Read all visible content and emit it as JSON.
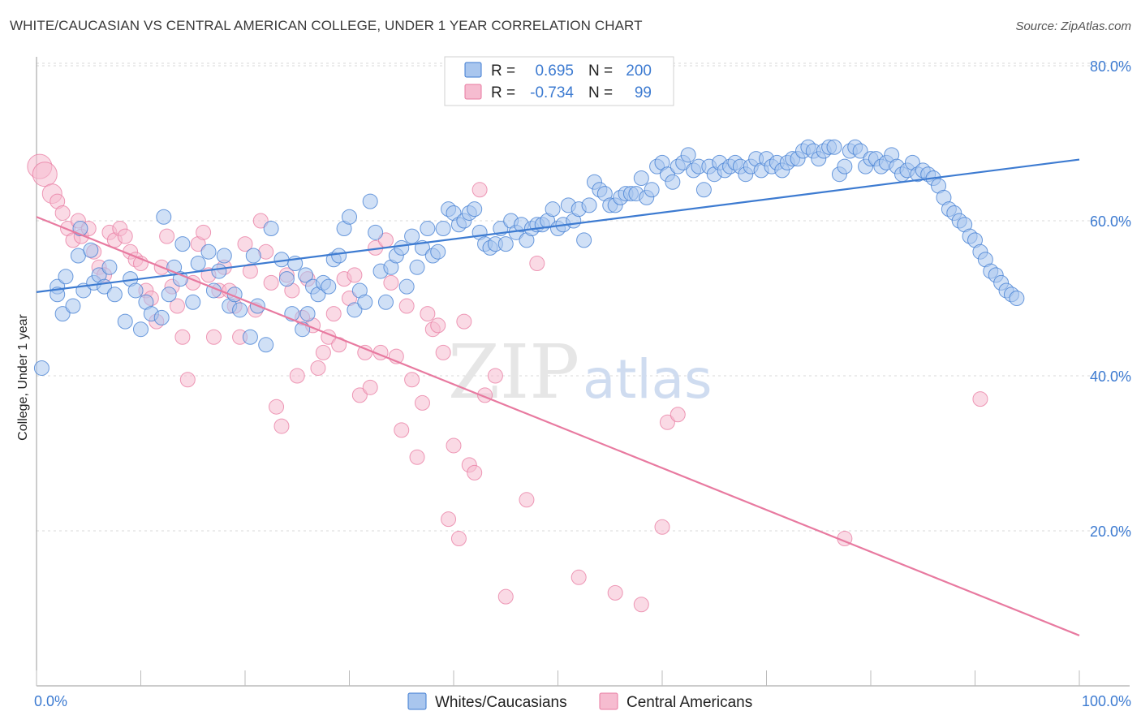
{
  "title": "WHITE/CAUCASIAN VS CENTRAL AMERICAN COLLEGE, UNDER 1 YEAR CORRELATION CHART",
  "source": "Source: ZipAtlas.com",
  "watermark": {
    "zip": "ZIP",
    "atlas": "atlas"
  },
  "colors": {
    "blue": "#3d7bd1",
    "blue_fill": "#a9c6ee",
    "pink": "#e87aa0",
    "pink_fill": "#f6bcd0",
    "grid": "#d8d8d8"
  },
  "legend": {
    "r_label": "R =",
    "n_label": "N =",
    "rows": [
      {
        "r": "0.695",
        "n": "200"
      },
      {
        "r": "-0.734",
        "n": "99"
      }
    ]
  },
  "bottom_legend": [
    "Whites/Caucasians",
    "Central Americans"
  ],
  "chart_data": {
    "type": "scatter",
    "title": "WHITE/CAUCASIAN VS CENTRAL AMERICAN COLLEGE, UNDER 1 YEAR CORRELATION CHART",
    "xlabel": "",
    "ylabel": "College, Under 1 year",
    "xlim": [
      0,
      100
    ],
    "ylim": [
      0,
      85
    ],
    "x_tick_labels": [
      "0.0%",
      "100.0%"
    ],
    "y_ticks": [
      20,
      40,
      60,
      80
    ],
    "y_tick_labels": [
      "20.0%",
      "40.0%",
      "60.0%",
      "80.0%"
    ],
    "grid": true,
    "legend_position": "top-center",
    "series": [
      {
        "name": "Whites/Caucasians",
        "color": "#3d7bd1",
        "trend": {
          "x": [
            0,
            100
          ],
          "y": [
            50.8,
            67.9
          ]
        },
        "points": [
          [
            0.5,
            41
          ],
          [
            2,
            51.5
          ],
          [
            2,
            50.5
          ],
          [
            2.5,
            48
          ],
          [
            2.8,
            52.8
          ],
          [
            3.5,
            49
          ],
          [
            4,
            55.5
          ],
          [
            4.2,
            59
          ],
          [
            4.5,
            51
          ],
          [
            5.2,
            56.2
          ],
          [
            5.5,
            52
          ],
          [
            6,
            53
          ],
          [
            6.5,
            51.5
          ],
          [
            7,
            54
          ],
          [
            7.5,
            50.5
          ],
          [
            8.5,
            47
          ],
          [
            9,
            52.5
          ],
          [
            9.5,
            51
          ],
          [
            10,
            46
          ],
          [
            10.5,
            49.5
          ],
          [
            11,
            48
          ],
          [
            12,
            47.5
          ],
          [
            12.2,
            60.5
          ],
          [
            12.7,
            50.5
          ],
          [
            13.2,
            54
          ],
          [
            13.8,
            52.5
          ],
          [
            14,
            57
          ],
          [
            15,
            49.5
          ],
          [
            15.5,
            54.5
          ],
          [
            16.5,
            56
          ],
          [
            17,
            51
          ],
          [
            17.5,
            53.5
          ],
          [
            18,
            55.5
          ],
          [
            18.5,
            49
          ],
          [
            19,
            50.5
          ],
          [
            19.5,
            48.5
          ],
          [
            20.5,
            45
          ],
          [
            20.8,
            55.5
          ],
          [
            21.2,
            49
          ],
          [
            22,
            44
          ],
          [
            22.5,
            59
          ],
          [
            23.5,
            55
          ],
          [
            24,
            52.5
          ],
          [
            24.5,
            48
          ],
          [
            24.8,
            54.5
          ],
          [
            25.5,
            46
          ],
          [
            25.8,
            53
          ],
          [
            26,
            48
          ],
          [
            26.5,
            51.5
          ],
          [
            27,
            50.5
          ],
          [
            27.5,
            52
          ],
          [
            28,
            51.5
          ],
          [
            28.5,
            55
          ],
          [
            29,
            55.5
          ],
          [
            29.5,
            59
          ],
          [
            30,
            60.5
          ],
          [
            30.5,
            48.5
          ],
          [
            31,
            51
          ],
          [
            31.5,
            49.5
          ],
          [
            32,
            62.5
          ],
          [
            32.5,
            58.5
          ],
          [
            33,
            53.5
          ],
          [
            33.5,
            49.5
          ],
          [
            34,
            54
          ],
          [
            34.5,
            55.5
          ],
          [
            35,
            56.5
          ],
          [
            35.5,
            51.5
          ],
          [
            36,
            58
          ],
          [
            36.5,
            54
          ],
          [
            37,
            56.5
          ],
          [
            37.5,
            59
          ],
          [
            38,
            55.5
          ],
          [
            38.5,
            56
          ],
          [
            39,
            59
          ],
          [
            39.5,
            61.5
          ],
          [
            40,
            61
          ],
          [
            40.5,
            59.5
          ],
          [
            41,
            60
          ],
          [
            41.5,
            61
          ],
          [
            42,
            61.5
          ],
          [
            42.5,
            58.5
          ],
          [
            43,
            57
          ],
          [
            43.5,
            56.5
          ],
          [
            44,
            57
          ],
          [
            44.5,
            59
          ],
          [
            45,
            57
          ],
          [
            45.5,
            60
          ],
          [
            46,
            58.5
          ],
          [
            46.5,
            59.5
          ],
          [
            47,
            57.5
          ],
          [
            47.5,
            59
          ],
          [
            48,
            59.5
          ],
          [
            48.5,
            59.5
          ],
          [
            49,
            60
          ],
          [
            49.5,
            61.5
          ],
          [
            50,
            59
          ],
          [
            50.5,
            59.5
          ],
          [
            51,
            62
          ],
          [
            51.5,
            60
          ],
          [
            52,
            61.5
          ],
          [
            52.5,
            57.5
          ],
          [
            53,
            62
          ],
          [
            53.5,
            65
          ],
          [
            54,
            64
          ],
          [
            54.5,
            63.5
          ],
          [
            55,
            62
          ],
          [
            55.5,
            62
          ],
          [
            56,
            63
          ],
          [
            56.5,
            63.5
          ],
          [
            57,
            63.5
          ],
          [
            57.5,
            63.5
          ],
          [
            58,
            65.5
          ],
          [
            58.5,
            63
          ],
          [
            59,
            64
          ],
          [
            59.5,
            67
          ],
          [
            60,
            67.5
          ],
          [
            60.5,
            66
          ],
          [
            61,
            65
          ],
          [
            61.5,
            67
          ],
          [
            62,
            67.5
          ],
          [
            62.5,
            68.5
          ],
          [
            63,
            66.5
          ],
          [
            63.5,
            67
          ],
          [
            64,
            64
          ],
          [
            64.5,
            67
          ],
          [
            65,
            66
          ],
          [
            65.5,
            67.5
          ],
          [
            66,
            66.5
          ],
          [
            66.5,
            67
          ],
          [
            67,
            67.5
          ],
          [
            67.5,
            67
          ],
          [
            68,
            66
          ],
          [
            68.5,
            67
          ],
          [
            69,
            68
          ],
          [
            69.5,
            66.5
          ],
          [
            70,
            68
          ],
          [
            70.5,
            67
          ],
          [
            71,
            67.5
          ],
          [
            71.5,
            66.5
          ],
          [
            72,
            67.5
          ],
          [
            72.5,
            68
          ],
          [
            73,
            68
          ],
          [
            73.5,
            69
          ],
          [
            74,
            69.5
          ],
          [
            74.5,
            69
          ],
          [
            75,
            68
          ],
          [
            75.5,
            69
          ],
          [
            76,
            69.5
          ],
          [
            76.5,
            69.5
          ],
          [
            77,
            66
          ],
          [
            77.5,
            67
          ],
          [
            78,
            69
          ],
          [
            78.5,
            69.5
          ],
          [
            79,
            69
          ],
          [
            79.5,
            67
          ],
          [
            80,
            68
          ],
          [
            80.5,
            68
          ],
          [
            81,
            67
          ],
          [
            81.5,
            67.5
          ],
          [
            82,
            68.5
          ],
          [
            82.5,
            67
          ],
          [
            83,
            66
          ],
          [
            83.5,
            66.5
          ],
          [
            84,
            67.5
          ],
          [
            84.5,
            66
          ],
          [
            85,
            66.5
          ],
          [
            85.5,
            66
          ],
          [
            86,
            65.5
          ],
          [
            86.5,
            64.5
          ],
          [
            87,
            63
          ],
          [
            87.5,
            61.5
          ],
          [
            88,
            61
          ],
          [
            88.5,
            60
          ],
          [
            89,
            59.5
          ],
          [
            89.5,
            58
          ],
          [
            90,
            57.5
          ],
          [
            90.5,
            56
          ],
          [
            91,
            55
          ],
          [
            91.5,
            53.5
          ],
          [
            92,
            53
          ],
          [
            92.5,
            52
          ],
          [
            93,
            51
          ],
          [
            93.5,
            50.5
          ],
          [
            94,
            50
          ]
        ]
      },
      {
        "name": "Central Americans",
        "color": "#e87aa0",
        "trend": {
          "x": [
            0,
            100
          ],
          "y": [
            60.5,
            6.5
          ]
        },
        "points": [
          [
            0.3,
            67
          ],
          [
            0.8,
            66
          ],
          [
            1.5,
            63.5
          ],
          [
            2,
            62.5
          ],
          [
            2.5,
            61
          ],
          [
            3,
            59
          ],
          [
            3.5,
            57.5
          ],
          [
            4,
            60
          ],
          [
            4.3,
            58
          ],
          [
            5,
            59
          ],
          [
            5.5,
            56
          ],
          [
            6,
            54
          ],
          [
            6.5,
            53
          ],
          [
            7,
            58.5
          ],
          [
            7.5,
            57.5
          ],
          [
            8,
            59
          ],
          [
            8.5,
            58
          ],
          [
            9,
            56
          ],
          [
            9.5,
            55
          ],
          [
            10,
            54.5
          ],
          [
            10.5,
            51
          ],
          [
            11,
            50
          ],
          [
            11.5,
            47
          ],
          [
            12,
            54
          ],
          [
            12.5,
            58
          ],
          [
            13,
            51.5
          ],
          [
            13.5,
            49
          ],
          [
            14,
            45
          ],
          [
            14.5,
            39.5
          ],
          [
            15,
            52
          ],
          [
            15.5,
            57
          ],
          [
            16,
            58.5
          ],
          [
            16.5,
            53
          ],
          [
            17,
            45
          ],
          [
            17.5,
            51
          ],
          [
            18,
            54
          ],
          [
            18.5,
            51
          ],
          [
            19,
            49
          ],
          [
            19.5,
            45
          ],
          [
            20,
            57
          ],
          [
            20.5,
            53.5
          ],
          [
            21,
            48.5
          ],
          [
            21.5,
            60
          ],
          [
            22,
            56
          ],
          [
            22.5,
            52
          ],
          [
            23,
            36
          ],
          [
            23.5,
            33.5
          ],
          [
            24,
            53
          ],
          [
            24.5,
            51
          ],
          [
            25,
            40
          ],
          [
            25.5,
            47.5
          ],
          [
            26,
            52.5
          ],
          [
            26.5,
            46.5
          ],
          [
            27,
            41
          ],
          [
            27.5,
            43
          ],
          [
            28,
            45
          ],
          [
            28.5,
            48
          ],
          [
            29,
            44
          ],
          [
            29.5,
            52.5
          ],
          [
            30,
            50
          ],
          [
            30.5,
            53
          ],
          [
            31,
            37.5
          ],
          [
            31.5,
            43
          ],
          [
            32,
            38.5
          ],
          [
            32.5,
            56.5
          ],
          [
            33,
            43
          ],
          [
            33.5,
            57.5
          ],
          [
            34,
            52
          ],
          [
            34.5,
            42.5
          ],
          [
            35,
            33
          ],
          [
            35.5,
            49
          ],
          [
            36,
            39.5
          ],
          [
            36.5,
            29.5
          ],
          [
            37,
            36.5
          ],
          [
            37.5,
            48
          ],
          [
            38,
            46
          ],
          [
            38.5,
            46.5
          ],
          [
            39,
            43
          ],
          [
            39.5,
            21.5
          ],
          [
            40,
            31
          ],
          [
            40.5,
            19
          ],
          [
            41,
            47
          ],
          [
            41.5,
            28.5
          ],
          [
            42,
            27.5
          ],
          [
            42.5,
            64
          ],
          [
            43,
            37.5
          ],
          [
            44,
            40
          ],
          [
            45,
            11.5
          ],
          [
            47,
            24
          ],
          [
            48,
            54.5
          ],
          [
            52,
            14
          ],
          [
            55.5,
            12
          ],
          [
            58,
            10.5
          ],
          [
            60,
            20.5
          ],
          [
            60.5,
            34
          ],
          [
            61.5,
            35
          ],
          [
            90.5,
            37
          ],
          [
            77.5,
            19
          ]
        ]
      }
    ]
  }
}
